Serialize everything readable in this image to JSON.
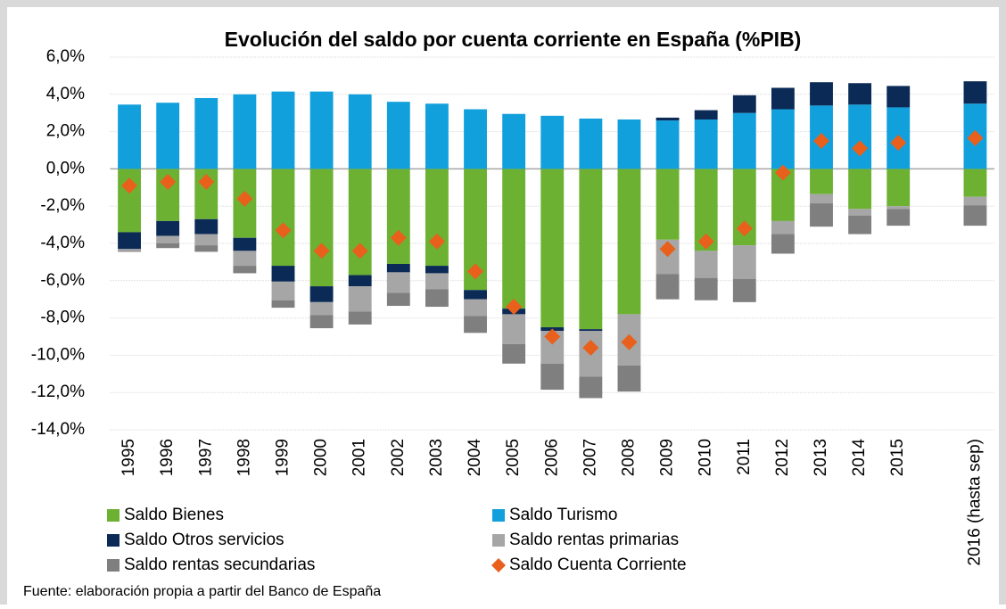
{
  "chart_data": {
    "type": "bar",
    "stacked": true,
    "title": "Evolución del saldo por cuenta corriente en España (%PIB)",
    "source": "Fuente: elaboración propia a partir del Banco de España",
    "categories": [
      "1995",
      "1996",
      "1997",
      "1998",
      "1999",
      "2000",
      "2001",
      "2002",
      "2003",
      "2004",
      "2005",
      "2006",
      "2007",
      "2008",
      "2009",
      "2010",
      "2011",
      "2012",
      "2013",
      "2014",
      "2015",
      null,
      "2016 (hasta sep)"
    ],
    "ylim": [
      -14,
      6
    ],
    "yticks": [
      {
        "value": -14,
        "label": "-14,0%"
      },
      {
        "value": -12,
        "label": "-12,0%"
      },
      {
        "value": -10,
        "label": "-10,0%"
      },
      {
        "value": -8,
        "label": "-8,0%"
      },
      {
        "value": -6,
        "label": "-6,0%"
      },
      {
        "value": -4,
        "label": "-4,0%"
      },
      {
        "value": -2,
        "label": "-2,0%"
      },
      {
        "value": 0,
        "label": "0,0%"
      },
      {
        "value": 2,
        "label": "2,0%"
      },
      {
        "value": 4,
        "label": "4,0%"
      },
      {
        "value": 6,
        "label": "6,0%"
      }
    ],
    "grid": true,
    "series": [
      {
        "name": "Saldo Bienes",
        "type": "bar",
        "color": "#6db133",
        "values": [
          -3.4,
          -2.8,
          -2.7,
          -3.7,
          -5.2,
          -6.3,
          -5.7,
          -5.1,
          -5.2,
          -6.5,
          -7.5,
          -8.5,
          -8.6,
          -7.8,
          -3.8,
          -4.4,
          -4.1,
          -2.8,
          -1.35,
          -2.15,
          -2.0,
          null,
          -1.5
        ]
      },
      {
        "name": "Saldo Turismo",
        "type": "bar",
        "color": "#12a0dc",
        "values": [
          3.45,
          3.55,
          3.8,
          4.0,
          4.15,
          4.15,
          4.0,
          3.6,
          3.5,
          3.2,
          2.95,
          2.85,
          2.7,
          2.65,
          2.6,
          2.65,
          3.0,
          3.2,
          3.4,
          3.45,
          3.3,
          null,
          3.5
        ]
      },
      {
        "name": "Saldo Otros servicios",
        "type": "bar",
        "color": "#0b2a56",
        "values": [
          -0.9,
          -0.8,
          -0.8,
          -0.7,
          -0.85,
          -0.85,
          -0.6,
          -0.45,
          -0.4,
          -0.5,
          -0.3,
          -0.2,
          -0.1,
          0,
          0.15,
          0.5,
          0.95,
          1.15,
          1.25,
          1.15,
          1.15,
          null,
          1.2
        ]
      },
      {
        "name": "Saldo rentas primarias",
        "type": "bar",
        "color": "#a6a6a6",
        "values": [
          -0.1,
          -0.4,
          -0.6,
          -0.8,
          -1.0,
          -0.7,
          -1.35,
          -1.1,
          -0.85,
          -0.9,
          -1.6,
          -1.75,
          -2.45,
          -2.75,
          -1.85,
          -1.45,
          -1.8,
          -0.7,
          -0.5,
          -0.35,
          -0.15,
          null,
          -0.45
        ]
      },
      {
        "name": "Saldo rentas secundarias",
        "type": "bar",
        "color": "#7f7f7f",
        "values": [
          -0.05,
          -0.25,
          -0.35,
          -0.4,
          -0.4,
          -0.7,
          -0.7,
          -0.7,
          -0.95,
          -0.9,
          -1.05,
          -1.4,
          -1.15,
          -1.4,
          -1.35,
          -1.2,
          -1.25,
          -1.05,
          -1.25,
          -1.0,
          -0.9,
          null,
          -1.1
        ]
      },
      {
        "name": "Saldo Cuenta Corriente",
        "type": "scatter",
        "color": "#e8601c",
        "values": [
          -0.9,
          -0.7,
          -0.7,
          -1.6,
          -3.3,
          -4.4,
          -4.4,
          -3.7,
          -3.9,
          -5.5,
          -7.4,
          -9.0,
          -9.6,
          -9.3,
          -4.3,
          -3.9,
          -3.2,
          -0.2,
          1.5,
          1.1,
          1.4,
          null,
          1.65
        ]
      }
    ]
  }
}
